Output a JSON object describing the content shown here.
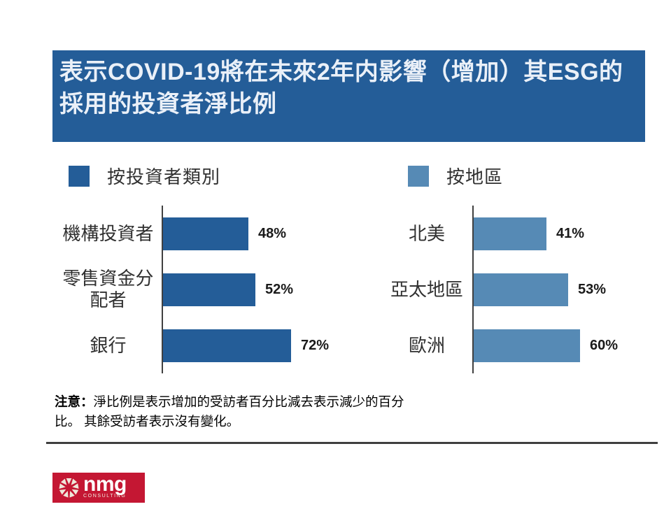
{
  "title": {
    "lines": [
      "表示COVID-19將在未來2年内影響（增加）其ESG的",
      "採用的投資者淨比例"
    ]
  },
  "note": {
    "prefix": "注意：",
    "lines": [
      "淨比例是表示增加的受訪者百分比減去表示減少的百分",
      "比。 其餘受訪者表示沒有變化。"
    ]
  },
  "logo": {
    "name": "nmg",
    "tagline": "CONSULTING"
  },
  "colors": {
    "banner_bg": "#245D98",
    "dark_bar": "#245D98",
    "light_bar": "#568AB5",
    "axis_line": "#404040",
    "divider": "#3F3F3F",
    "logo_red": "#C41733",
    "title_text": "#EAF0F8"
  },
  "chart_data": [
    {
      "type": "bar",
      "orientation": "horizontal",
      "legend": "按投資者類別",
      "color": "#245D98",
      "categories": [
        "機構投資者",
        "零售資金分配者",
        "銀行"
      ],
      "values": [
        48,
        52,
        72
      ],
      "value_labels": [
        "48%",
        "52%",
        "72%"
      ],
      "xlim": [
        0,
        100
      ],
      "grid": false,
      "legend_position": "top-left"
    },
    {
      "type": "bar",
      "orientation": "horizontal",
      "legend": "按地區",
      "color": "#568AB5",
      "categories": [
        "北美",
        "亞太地區",
        "歐洲"
      ],
      "values": [
        41,
        53,
        60
      ],
      "value_labels": [
        "41%",
        "53%",
        "60%"
      ],
      "xlim": [
        0,
        100
      ],
      "grid": false,
      "legend_position": "top-left"
    }
  ]
}
